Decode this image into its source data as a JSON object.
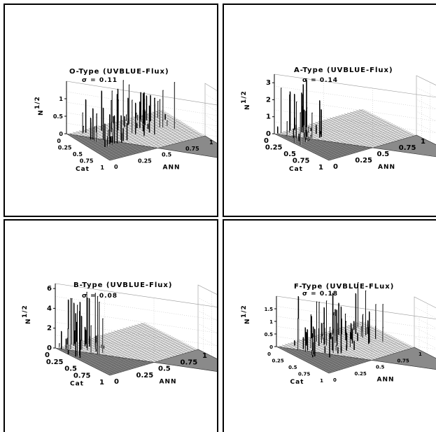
{
  "chart_data": [
    {
      "type": "surface3d",
      "title": "O-Type (UVBLUE-Flux)",
      "sigma_label": "σ = 0.11",
      "xlabel": "ANN",
      "ylabel": "Cat",
      "zlabel": "N",
      "zlabel_exp": "1/2",
      "x_ticks": [
        "0",
        "0.25",
        "0.5",
        "0.75",
        "1"
      ],
      "y_ticks": [
        "0",
        "0.25",
        "0.5",
        "0.75",
        "1"
      ],
      "z_ticks": [
        "0",
        "0.5",
        "1"
      ],
      "zlim": [
        0,
        1.5
      ],
      "grid": true,
      "spike_density": "high",
      "seed": 3
    },
    {
      "type": "surface3d",
      "title": "A-Type (UVBLUE-Flux)",
      "sigma_label": "σ = 0.14",
      "xlabel": "ANN",
      "ylabel": "Cat",
      "zlabel": "N",
      "zlabel_exp": "1/2",
      "x_ticks": [
        "0",
        "0.25",
        "0.5",
        "0.75",
        "1"
      ],
      "y_ticks": [
        "0",
        "0.25",
        "0.5",
        "0.75",
        "1"
      ],
      "z_ticks": [
        "0",
        "1",
        "2",
        "3"
      ],
      "zlim": [
        0,
        3.5
      ],
      "grid": true,
      "spike_density": "low",
      "seed": 11
    },
    {
      "type": "surface3d",
      "title": "B-Type (UVBLUE-Flux)",
      "sigma_label": "σ = 0.08",
      "xlabel": "ANN",
      "ylabel": "Cat",
      "zlabel": "N",
      "zlabel_exp": "1/2",
      "x_ticks": [
        "0",
        "0.25",
        "0.5",
        "0.75",
        "1"
      ],
      "y_ticks": [
        "0",
        "0.25",
        "0.5",
        "0.75",
        "1"
      ],
      "z_ticks": [
        "0",
        "2",
        "4",
        "6"
      ],
      "zlim": [
        0,
        6.5
      ],
      "grid": true,
      "spike_density": "low",
      "seed": 29
    },
    {
      "type": "surface3d",
      "title": "F-Type (UVBLUE-FLux)",
      "sigma_label": "σ = 0.18",
      "xlabel": "ANN",
      "ylabel": "Cat",
      "zlabel": "N",
      "zlabel_exp": "1/2",
      "x_ticks": [
        "0",
        "0.25",
        "0.5",
        "0.75",
        "1"
      ],
      "y_ticks": [
        "0",
        "0.25",
        "0.5",
        "0.75",
        "1"
      ],
      "z_ticks": [
        "0",
        "0.5",
        "1",
        "1.5"
      ],
      "zlim": [
        0,
        2
      ],
      "grid": true,
      "spike_density": "high",
      "seed": 47
    }
  ]
}
